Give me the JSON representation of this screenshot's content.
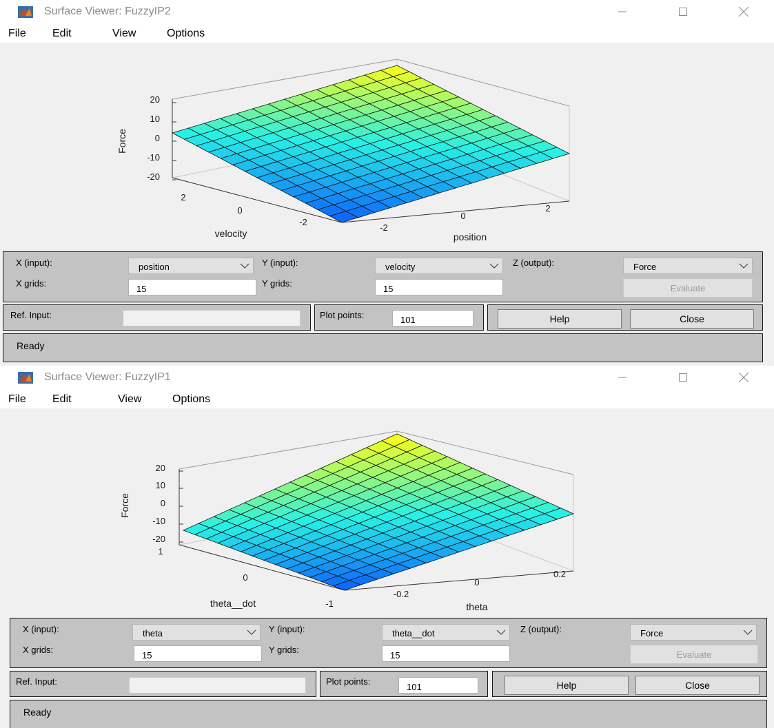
{
  "windows": [
    {
      "title": "Surface Viewer: FuzzyIP2",
      "menu": [
        "File",
        "Edit",
        "View",
        "Options"
      ],
      "plot": {
        "zlabel": "Force",
        "xlabel": "position",
        "ylabel": "velocity",
        "zticks": [
          "20",
          "10",
          "0",
          "-10",
          "-20"
        ],
        "xticks": [
          "-2",
          "0",
          "2"
        ],
        "yticks": [
          "2",
          "0",
          "-2"
        ]
      },
      "controls": {
        "x_input_label": "X (input):",
        "x_input_value": "position",
        "y_input_label": "Y (input):",
        "y_input_value": "velocity",
        "z_output_label": "Z (output):",
        "z_output_value": "Force",
        "x_grids_label": "X grids:",
        "x_grids_value": "15",
        "y_grids_label": "Y grids:",
        "y_grids_value": "15",
        "evaluate_label": "Evaluate",
        "ref_input_label": "Ref. Input:",
        "plot_points_label": "Plot points:",
        "plot_points_value": "101",
        "help_label": "Help",
        "close_label": "Close",
        "status": "Ready"
      }
    },
    {
      "title": "Surface Viewer: FuzzyIP1",
      "menu": [
        "File",
        "Edit",
        "View",
        "Options"
      ],
      "plot": {
        "zlabel": "Force",
        "xlabel": "theta",
        "ylabel": "theta__dot",
        "zticks": [
          "20",
          "10",
          "0",
          "-10",
          "-20"
        ],
        "xticks": [
          "-0.2",
          "0",
          "0.2"
        ],
        "yticks": [
          "1",
          "0",
          "-1"
        ]
      },
      "controls": {
        "x_input_label": "X (input):",
        "x_input_value": "theta",
        "y_input_label": "Y (input):",
        "y_input_value": "theta__dot",
        "z_output_label": "Z (output):",
        "z_output_value": "Force",
        "x_grids_label": "X grids:",
        "x_grids_value": "15",
        "y_grids_label": "Y grids:",
        "y_grids_value": "15",
        "evaluate_label": "Evaluate",
        "ref_input_label": "Ref. Input:",
        "plot_points_label": "Plot points:",
        "plot_points_value": "101",
        "help_label": "Help",
        "close_label": "Close",
        "status": "Ready"
      }
    }
  ],
  "colors": {
    "surface_low": "#0a60ff",
    "surface_mid": "#28f0e6",
    "surface_high": "#ffff12"
  },
  "icons": [
    "matlab-logo-icon",
    "minimize-icon",
    "maximize-icon",
    "close-icon",
    "chevron-down-icon"
  ]
}
